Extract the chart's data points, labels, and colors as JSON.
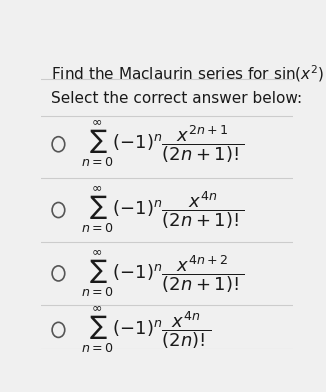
{
  "title_plain": "Find the Maclaurin series for ",
  "title_math": "$\\sin(x^2)$",
  "subtitle": "Select the correct answer below:",
  "options": [
    "$\\sum_{n=0}^{\\infty}(-1)^n\\dfrac{x^{2n+1}}{(2n+1)!}$",
    "$\\sum_{n=0}^{\\infty}(-1)^n\\dfrac{x^{4n}}{(2n+1)!}$",
    "$\\sum_{n=0}^{\\infty}(-1)^n\\dfrac{x^{4n+2}}{(2n+1)!}$",
    "$\\sum_{n=0}^{\\infty}(-1)^n\\dfrac{x^{4n}}{(2n)!}$"
  ],
  "bg_color": "#f0f0f0",
  "text_color": "#1a1a1a",
  "title_fontsize": 11,
  "option_fontsize": 13,
  "divider_color": "#cccccc"
}
